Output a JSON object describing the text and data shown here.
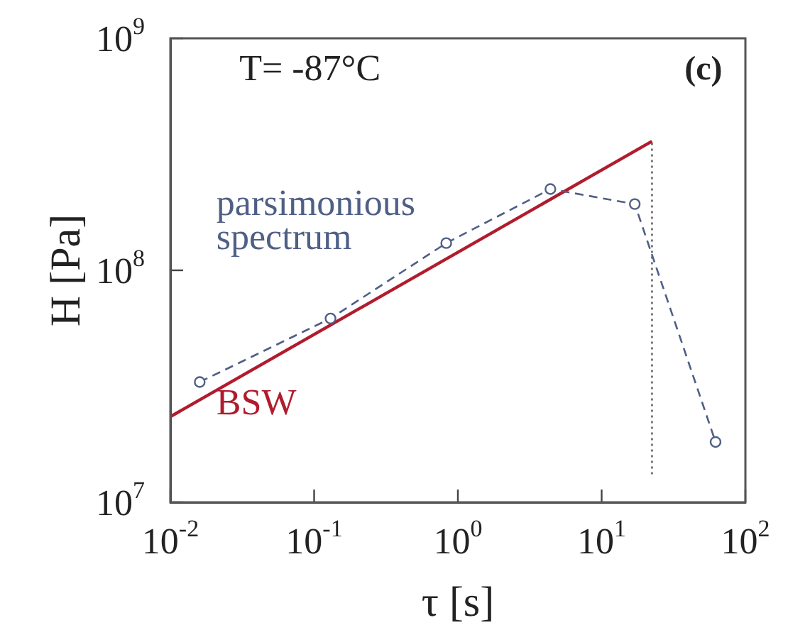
{
  "chart_data": {
    "type": "line",
    "xlabel": "τ [s]",
    "ylabel": "H [Pa]",
    "log": "xy",
    "grid": false,
    "legend": false,
    "xlim": [
      0.01,
      100
    ],
    "ylim": [
      10000000,
      1000000000
    ],
    "xticks": [
      {
        "value": 0.01,
        "label": "10$^{-2}$"
      },
      {
        "value": 0.1,
        "label": "10$^{-1}$"
      },
      {
        "value": 1,
        "label": "10$^{0}$"
      },
      {
        "value": 10,
        "label": "10$^{1}$"
      },
      {
        "value": 100,
        "label": "10$^{2}$"
      }
    ],
    "yticks": [
      {
        "value": 10000000,
        "label": "10$^{7}$"
      },
      {
        "value": 100000000,
        "label": "10$^{8}$"
      },
      {
        "value": 1000000000,
        "label": "10$^{9}$"
      }
    ],
    "annotations": [
      "T= -87°C",
      "(c)"
    ],
    "series": [
      {
        "name": "parsimonious spectrum",
        "color": "#4f5f85",
        "marker": "circle",
        "line_style": "dashed",
        "x": [
          0.016,
          0.13,
          0.83,
          4.4,
          17,
          62
        ],
        "values": [
          33000000,
          62000000,
          131000000,
          224000000,
          193000000,
          18200000
        ]
      },
      {
        "name": "BSW",
        "color": "#b01c2e",
        "marker": "none",
        "line_style": "solid",
        "x": [
          0.01,
          22.4
        ],
        "values": [
          23400000,
          360000000
        ]
      },
      {
        "color": "#666666",
        "marker": "none",
        "line_style": "dotted",
        "x": [
          22.4,
          22.4
        ],
        "values": [
          13200000,
          360000000
        ]
      }
    ]
  }
}
